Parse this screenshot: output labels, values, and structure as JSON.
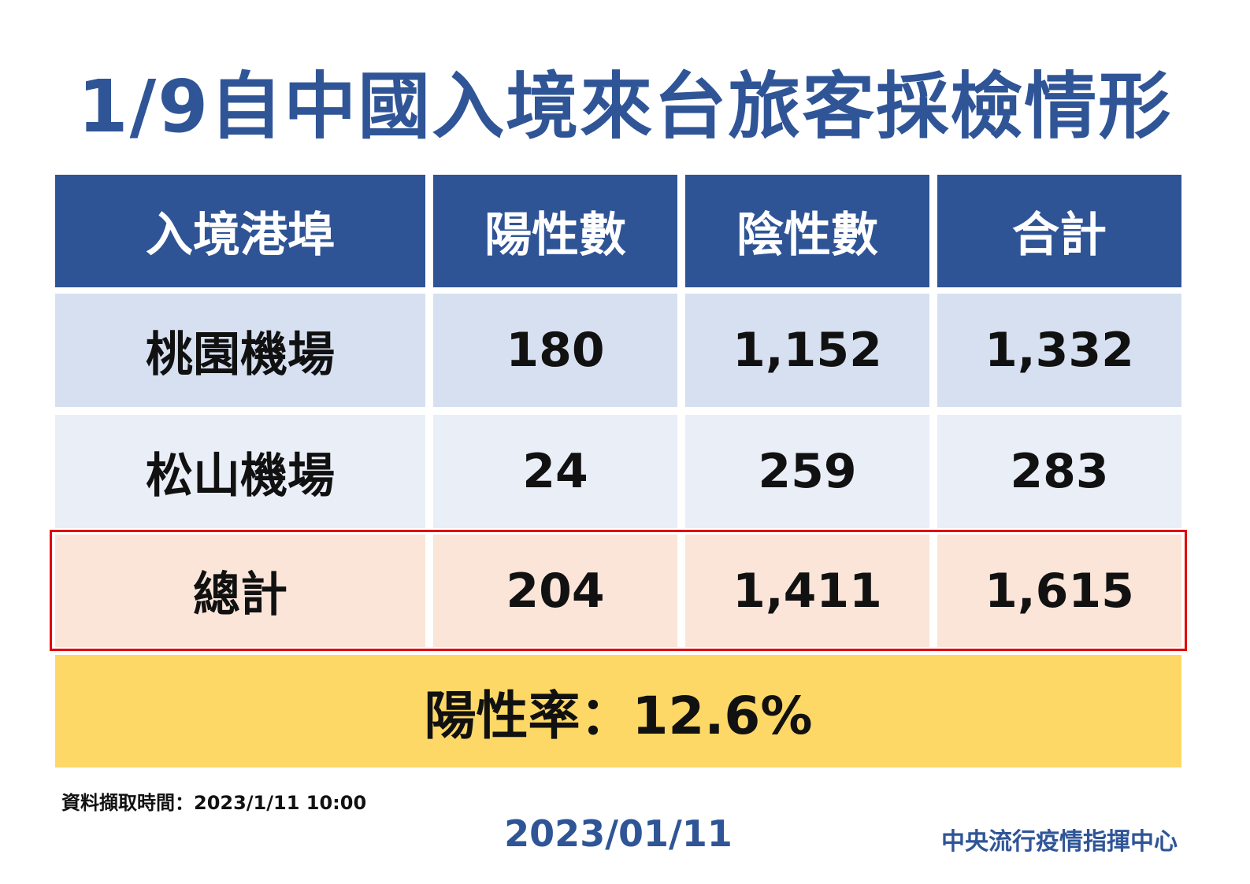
{
  "header": {
    "title": "1/9自中國入境來台旅客採檢情形"
  },
  "table": {
    "columns": [
      "入境港埠",
      "陽性數",
      "陰性數",
      "合計"
    ],
    "rows": [
      [
        "桃園機場",
        "180",
        "1,152",
        "1,332"
      ],
      [
        "松山機場",
        "24",
        "259",
        "283"
      ]
    ],
    "total": [
      "總計",
      "204",
      "1,411",
      "1,615"
    ],
    "rate": "陽性率：12.6%"
  },
  "footer": {
    "note": "資料擷取時間：2023/1/11 10:00",
    "date": "2023/01/11",
    "org": "中央流行疫情指揮中心"
  }
}
